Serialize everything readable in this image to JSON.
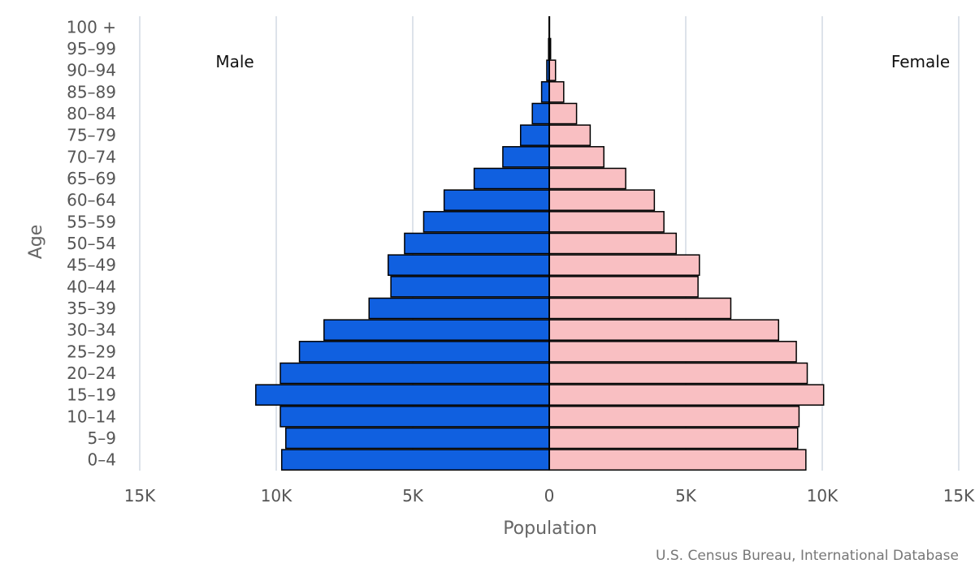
{
  "chart_data": {
    "type": "bar",
    "orientation": "horizontal-pyramid",
    "categories": [
      "0-4",
      "5-9",
      "10-14",
      "15-19",
      "20-24",
      "25-29",
      "30-34",
      "35-39",
      "40-44",
      "45-49",
      "50-54",
      "55-59",
      "60-64",
      "65-69",
      "70-74",
      "75-79",
      "80-84",
      "85-89",
      "90-94",
      "95-99",
      "100 +"
    ],
    "series": [
      {
        "name": "Male",
        "color": "#1060e0",
        "values": [
          9800,
          9650,
          9850,
          10750,
          9850,
          9150,
          8250,
          6600,
          5800,
          5900,
          5300,
          4600,
          3850,
          2750,
          1700,
          1050,
          620,
          280,
          90,
          25,
          8
        ]
      },
      {
        "name": "Female",
        "color": "#f9bfc2",
        "values": [
          9400,
          9100,
          9150,
          10050,
          9450,
          9050,
          8400,
          6650,
          5450,
          5500,
          4650,
          4200,
          3850,
          2800,
          2000,
          1500,
          1000,
          530,
          230,
          50,
          12
        ]
      }
    ],
    "xlabel": "Population",
    "ylabel": "Age",
    "xlim": [
      -15000,
      15000
    ],
    "xticks": [
      -15000,
      -10000,
      -5000,
      0,
      5000,
      10000,
      15000
    ],
    "xtick_labels": [
      "15K",
      "10K",
      "5K",
      "0",
      "5K",
      "10K",
      "15K"
    ],
    "side_labels": {
      "left": "Male",
      "right": "Female"
    },
    "source": "U.S. Census Bureau, International Database",
    "grid": true
  }
}
